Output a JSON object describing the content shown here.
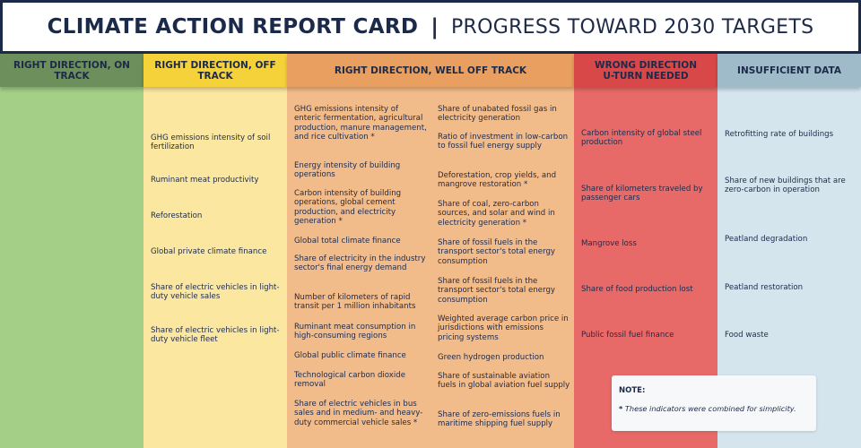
{
  "header": {
    "title": "CLIMATE ACTION REPORT CARD",
    "separator": "|",
    "subtitle": "PROGRESS TOWARD 2030 TARGETS"
  },
  "columns": {
    "on_track": {
      "heading": "RIGHT DIRECTION, ON TRACK",
      "color": "#a3cf86",
      "items": []
    },
    "off_track": {
      "heading": "RIGHT DIRECTION, OFF TRACK",
      "color": "#fbe7a0",
      "items": [
        "GHG emissions intensity of soil fertilization",
        "Ruminant meat productivity",
        "Reforestation",
        "Global private climate finance",
        "Share of electric vehicles in light-duty vehicle sales",
        "Share of electric vehicles in light-duty vehicle fleet"
      ]
    },
    "well_off_track": {
      "heading": "RIGHT DIRECTION, WELL OFF TRACK",
      "color": "#f2bb8a",
      "items_left": [
        "GHG emissions intensity of enteric fermentation, agricultural production, manure management, and rice cultivation *",
        "Energy intensity of building operations",
        "Carbon intensity of building operations, global cement production, and electricity generation *",
        "Global total climate finance",
        "Share of electricity in the industry sector's final energy demand",
        "Number of kilometers of rapid transit per 1 million inhabitants",
        "Ruminant meat consumption in high-consuming regions",
        "Global public climate finance",
        "Technological carbon dioxide removal",
        "Share of electric vehicles in bus sales and in medium- and heavy-duty commercial vehicle sales *"
      ],
      "items_right": [
        "Share of unabated fossil gas in electricity generation",
        "Ratio of investment in low-carbon to fossil fuel energy supply",
        "Deforestation, crop yields, and mangrove restoration *",
        "Share of coal, zero-carbon sources, and solar and wind in electricity generation *",
        "Share of fossil fuels in the transport sector's total energy consumption",
        "Share of fossil fuels in the transport sector's total energy consumption",
        "Weighted average carbon price in jurisdictions with emissions pricing systems",
        "Green hydrogen production",
        "Share of sustainable aviation fuels in global aviation fuel supply",
        "Share of zero-emissions fuels in maritime shipping fuel supply"
      ]
    },
    "wrong_direction": {
      "heading_line1": "WRONG DIRECTION",
      "heading_line2": "U-TURN NEEDED",
      "color": "#e86a68",
      "items": [
        "Carbon intensity of global steel production",
        "Share of kilometers traveled by passenger cars",
        "Mangrove loss",
        "Share of food production lost",
        "Public fossil fuel finance"
      ]
    },
    "insufficient_data": {
      "heading": "INSUFFICIENT DATA",
      "color": "#d4e5ee",
      "items": [
        "Retrofitting rate of buildings",
        "Share of new buildings that are zero-carbon in operation",
        "Peatland degradation",
        "Peatland restoration",
        "Food waste"
      ]
    }
  },
  "note": {
    "heading": "NOTE:",
    "marker": "*",
    "text": "These indicators were combined for simplicity."
  }
}
